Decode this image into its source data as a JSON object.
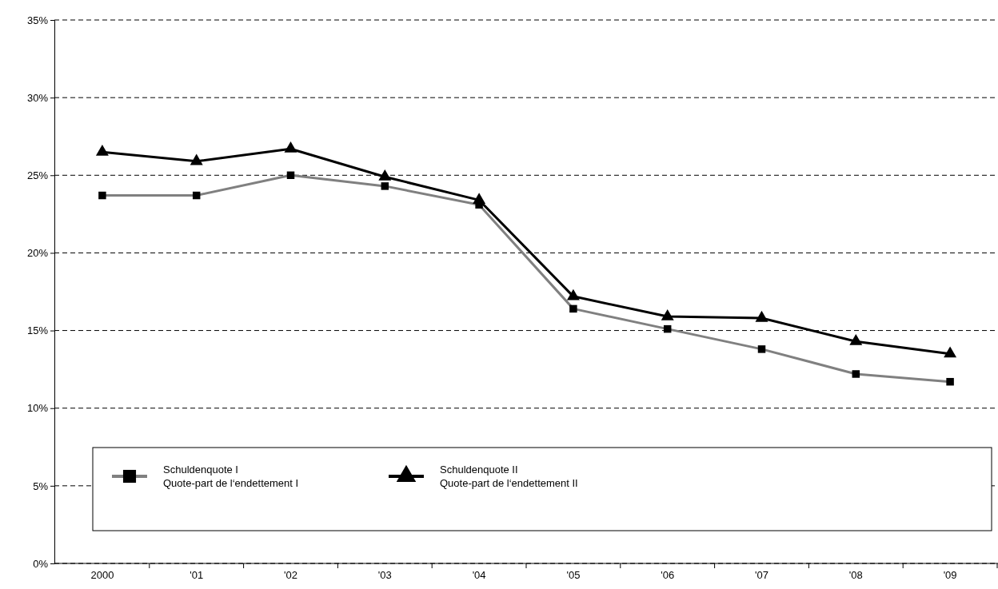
{
  "chart_data": {
    "type": "line",
    "categories": [
      "2000",
      "'01",
      "'02",
      "'03",
      "'04",
      "'05",
      "'06",
      "'07",
      "'08",
      "'09"
    ],
    "ylim": [
      0,
      35
    ],
    "yticks": [
      {
        "value": 0,
        "label": "0%"
      },
      {
        "value": 5,
        "label": "5%"
      },
      {
        "value": 10,
        "label": "10%"
      },
      {
        "value": 15,
        "label": "15%"
      },
      {
        "value": 20,
        "label": "20%"
      },
      {
        "value": 25,
        "label": "25%"
      },
      {
        "value": 30,
        "label": "30%"
      },
      {
        "value": 35,
        "label": "35%"
      }
    ],
    "grid": "y",
    "legend": "bottom",
    "line_style": "solid",
    "series": [
      {
        "name": "Schuldenquote I\nQuote-part de l‘endettement I",
        "color": "#808080",
        "marker": "square",
        "values": [
          23.7,
          23.7,
          25.0,
          24.3,
          23.1,
          16.4,
          15.1,
          13.8,
          12.2,
          11.7
        ]
      },
      {
        "name": "Schuldenquote II\nQuote-part de l‘endettement II",
        "color": "#000000",
        "marker": "triangle",
        "values": [
          26.5,
          25.9,
          26.7,
          24.9,
          23.4,
          17.2,
          15.9,
          15.8,
          14.3,
          13.5
        ]
      }
    ]
  }
}
